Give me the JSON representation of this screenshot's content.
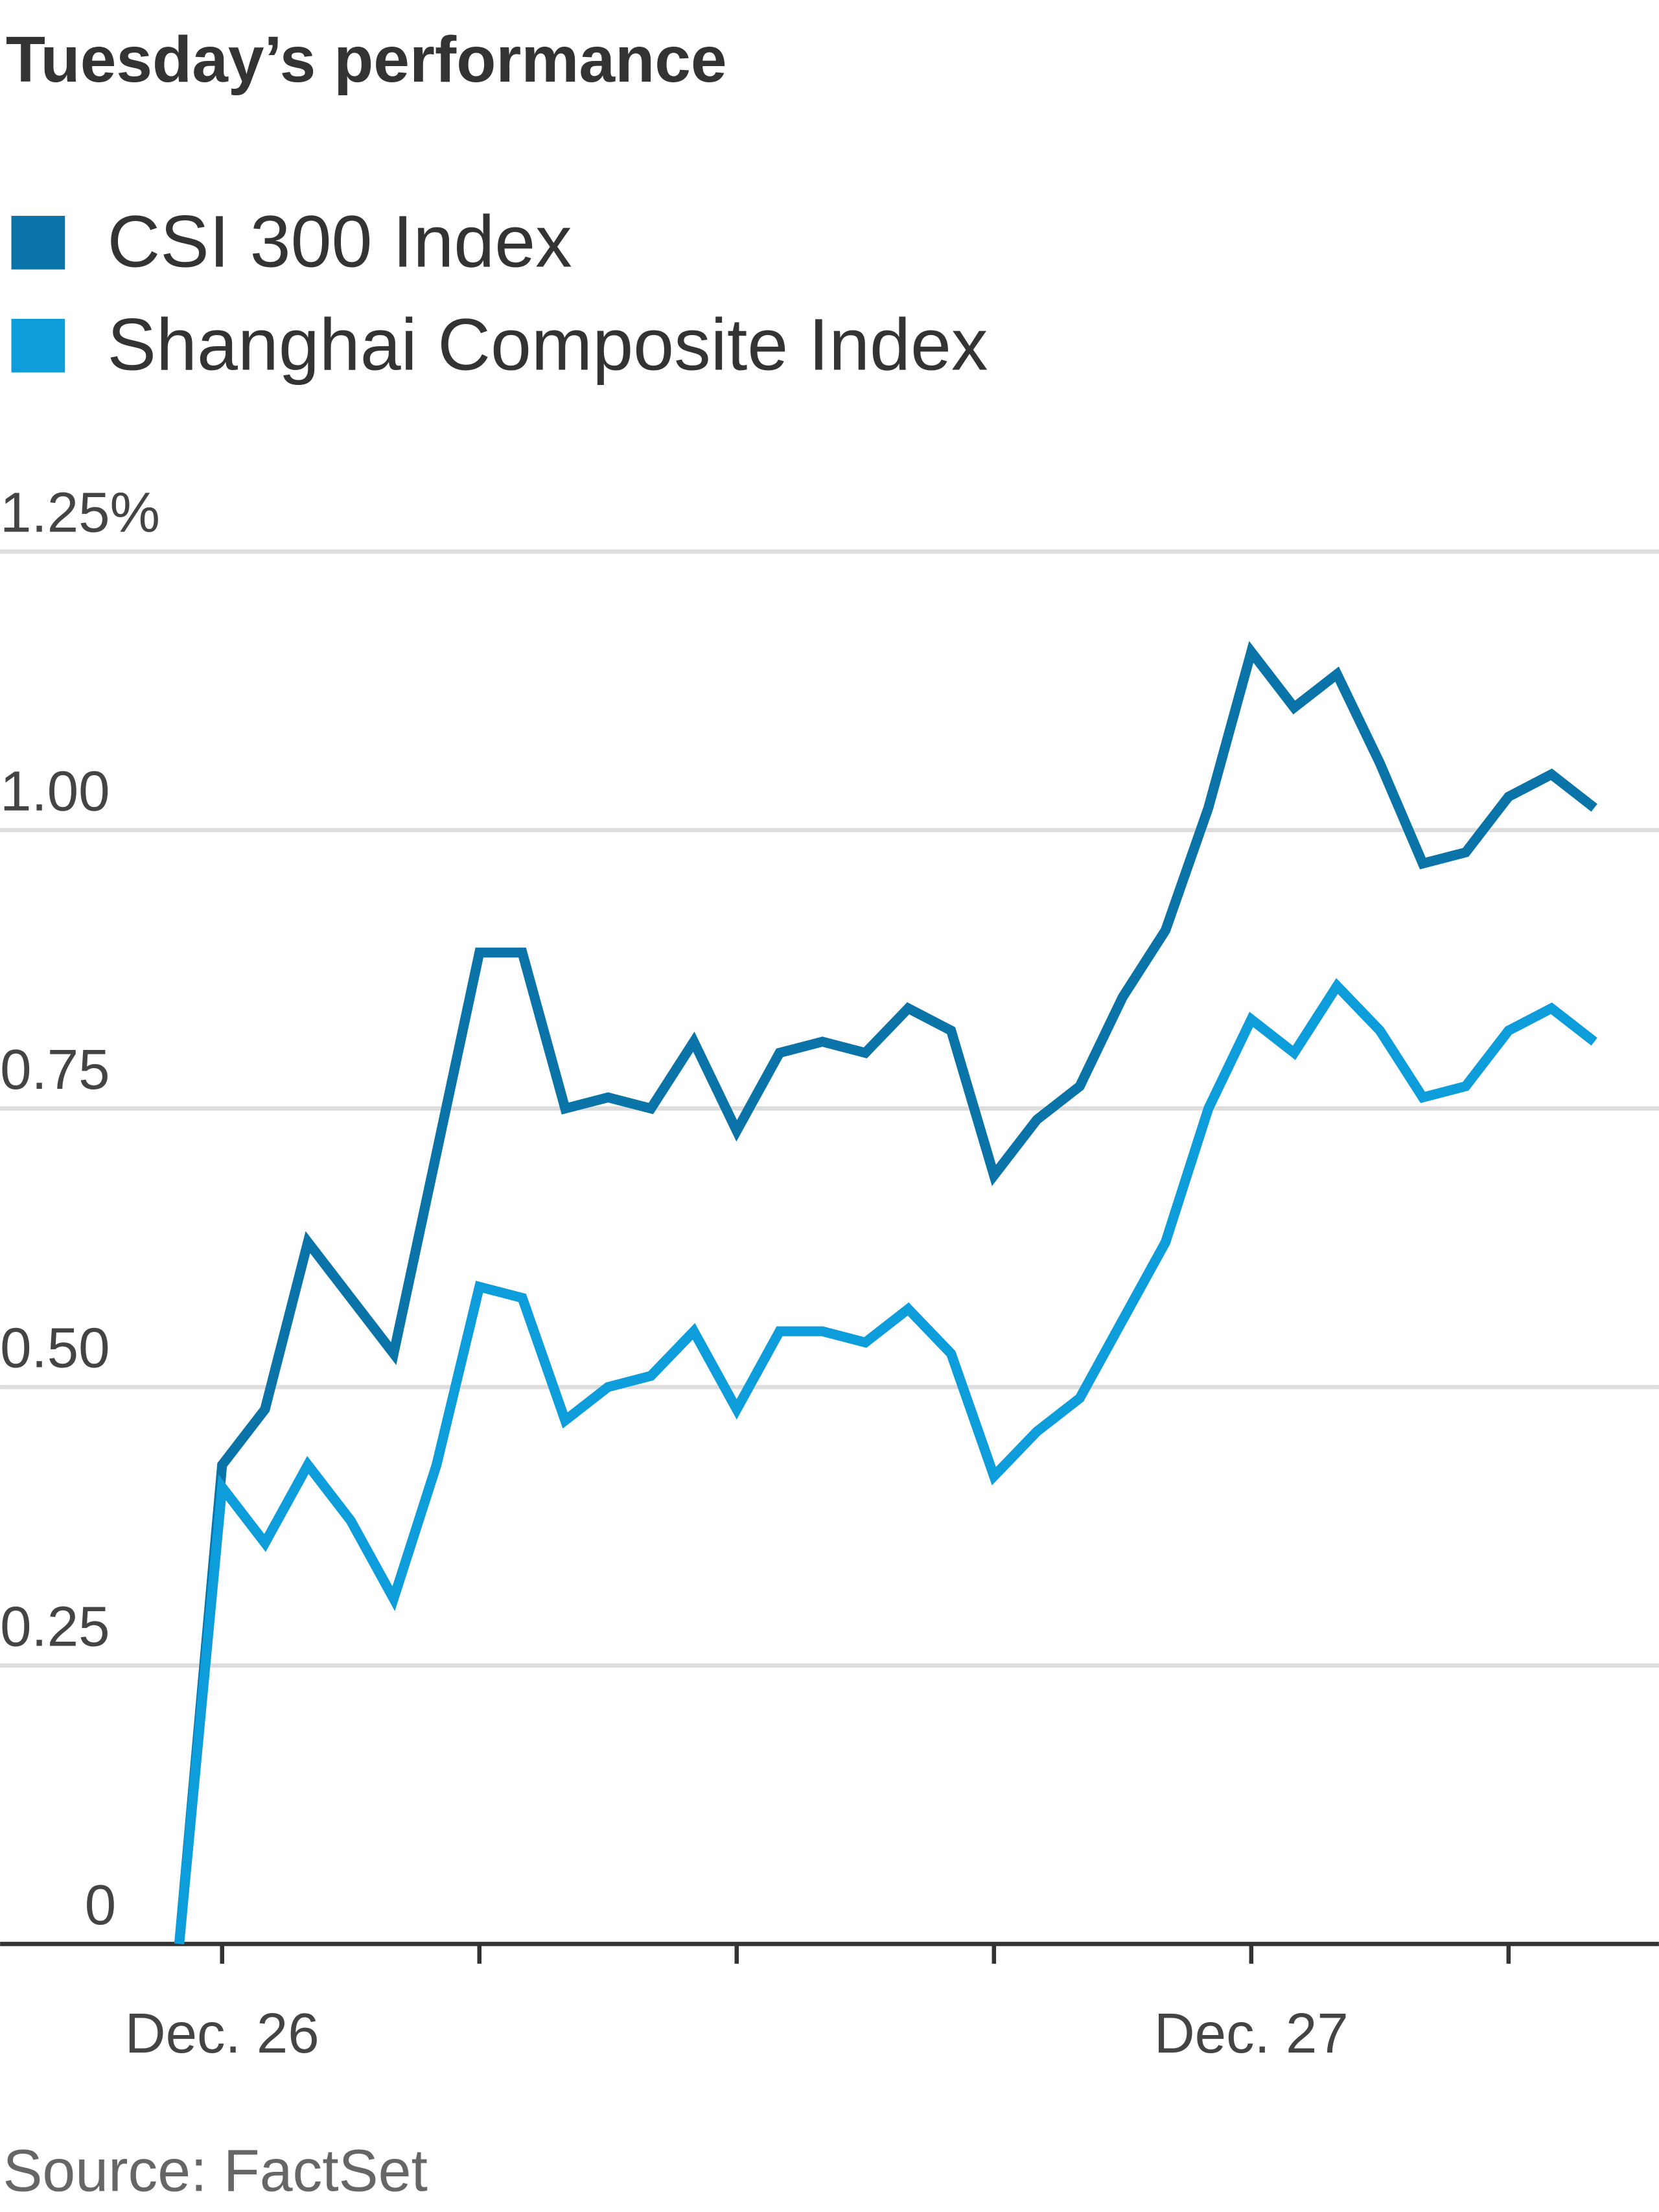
{
  "chart_data": {
    "type": "line",
    "title": "Tuesday’s performance",
    "source": "Source: FactSet",
    "categories": [
      null,
      "Dec. 26",
      null,
      null,
      null,
      null,
      null,
      null,
      null,
      null,
      null,
      null,
      null,
      null,
      null,
      null,
      null,
      null,
      null,
      null,
      null,
      null,
      null,
      null,
      null,
      "Dec. 27",
      null,
      null,
      null,
      null,
      null,
      null,
      null,
      null
    ],
    "series": [
      {
        "name": "CSI 300 Index",
        "color": "#0a74a8",
        "values": [
          0,
          0.43,
          0.48,
          0.63,
          0.58,
          0.53,
          0.71,
          0.89,
          0.89,
          0.75,
          0.76,
          0.75,
          0.81,
          0.73,
          0.8,
          0.81,
          0.8,
          0.84,
          0.82,
          0.69,
          0.74,
          0.77,
          0.85,
          0.91,
          1.02,
          1.16,
          1.11,
          1.14,
          1.06,
          0.97,
          0.98,
          1.03,
          1.05,
          1.02
        ]
      },
      {
        "name": "Shanghai Composite Index",
        "color": "#0d9ddb",
        "values": [
          0,
          0.41,
          0.36,
          0.43,
          0.38,
          0.31,
          0.43,
          0.59,
          0.58,
          0.47,
          0.5,
          0.51,
          0.55,
          0.48,
          0.55,
          0.55,
          0.54,
          0.57,
          0.53,
          0.42,
          0.46,
          0.49,
          0.56,
          0.63,
          0.75,
          0.83,
          0.8,
          0.86,
          0.82,
          0.76,
          0.77,
          0.82,
          0.84,
          0.81
        ]
      }
    ],
    "ylim": [
      0,
      1.25
    ],
    "yticks": [
      0,
      0.25,
      {
        "value": 0.5,
        "label": "0.50"
      },
      0.75,
      {
        "value": 1,
        "label": "1.00"
      },
      {
        "value": 1.25,
        "label": "1.25%"
      }
    ],
    "grid": true
  }
}
